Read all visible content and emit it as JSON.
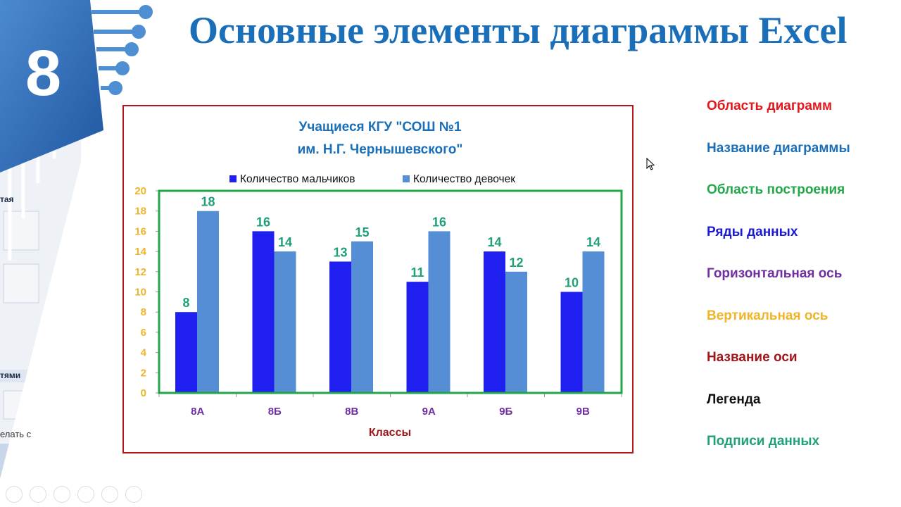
{
  "slide": {
    "number": "8",
    "title": "Основные элементы диаграммы Excel",
    "background_fragments": [
      "тая",
      "тями",
      "елать с"
    ]
  },
  "legend_list": [
    {
      "label": "Область диаграмм",
      "color": "#e3161b"
    },
    {
      "label": "Название диаграммы",
      "color": "#1a6fb8"
    },
    {
      "label": "Область построения",
      "color": "#22a84a"
    },
    {
      "label": "Ряды данных",
      "color": "#1a1ad6"
    },
    {
      "label": "Горизонтальная ось",
      "color": "#7030a0"
    },
    {
      "label": "Вертикальная ось",
      "color": "#f0b429"
    },
    {
      "label": "Название оси",
      "color": "#a0161b"
    },
    {
      "label": "Легенда",
      "color": "#111111"
    },
    {
      "label": "Подписи данных",
      "color": "#1fa07a"
    }
  ],
  "chart_data": {
    "type": "bar",
    "title": [
      "Учащиеся КГУ \"СОШ №1",
      "им. Н.Г. Чернышевского\""
    ],
    "categories": [
      "8А",
      "8Б",
      "8В",
      "9А",
      "9Б",
      "9В"
    ],
    "series": [
      {
        "name": "Количество мальчиков",
        "values": [
          8,
          16,
          13,
          11,
          14,
          10
        ],
        "color": "#1f1ff0"
      },
      {
        "name": "Количество девочек",
        "values": [
          18,
          14,
          15,
          16,
          12,
          14
        ],
        "color": "#558ed5"
      }
    ],
    "xlabel": "Классы",
    "ylabel": "",
    "ylim": [
      0,
      20
    ],
    "yticks": [
      0,
      2,
      4,
      6,
      8,
      10,
      12,
      14,
      16,
      18,
      20
    ],
    "legend_position": "top",
    "grid": false,
    "data_labels": true
  }
}
